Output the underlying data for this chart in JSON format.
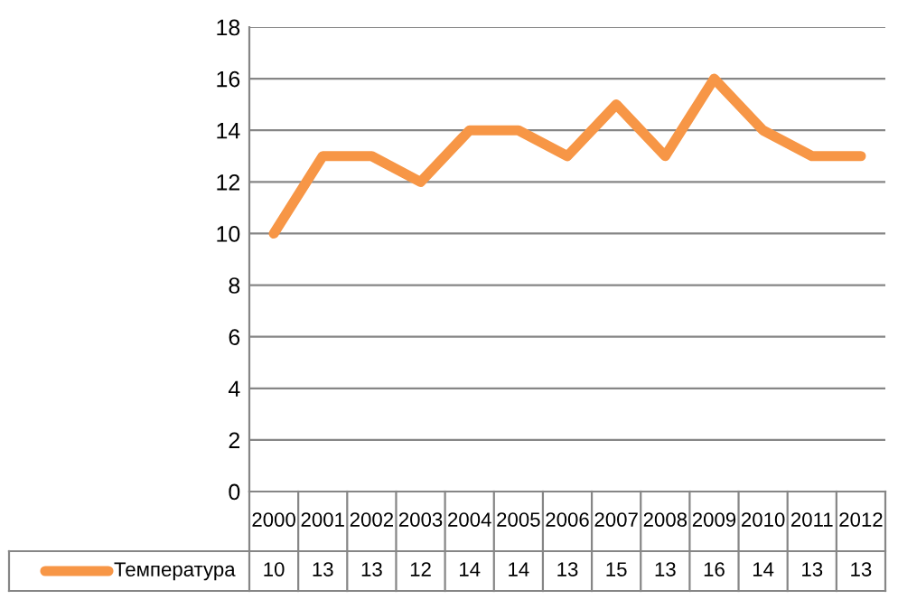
{
  "chart_data": {
    "type": "line",
    "categories": [
      "2000",
      "2001",
      "2002",
      "2003",
      "2004",
      "2005",
      "2006",
      "2007",
      "2008",
      "2009",
      "2010",
      "2011",
      "2012"
    ],
    "series": [
      {
        "name": "Температура",
        "color": "#f79646",
        "values": [
          10,
          13,
          13,
          12,
          14,
          14,
          13,
          15,
          13,
          16,
          14,
          13,
          13
        ]
      }
    ],
    "ylim": [
      0,
      18
    ],
    "yticks": [
      0,
      2,
      4,
      6,
      8,
      10,
      12,
      14,
      16,
      18
    ],
    "grid": "y",
    "legend": "bottom left",
    "data_labels": true,
    "marker": "none",
    "line_style": "solid"
  }
}
